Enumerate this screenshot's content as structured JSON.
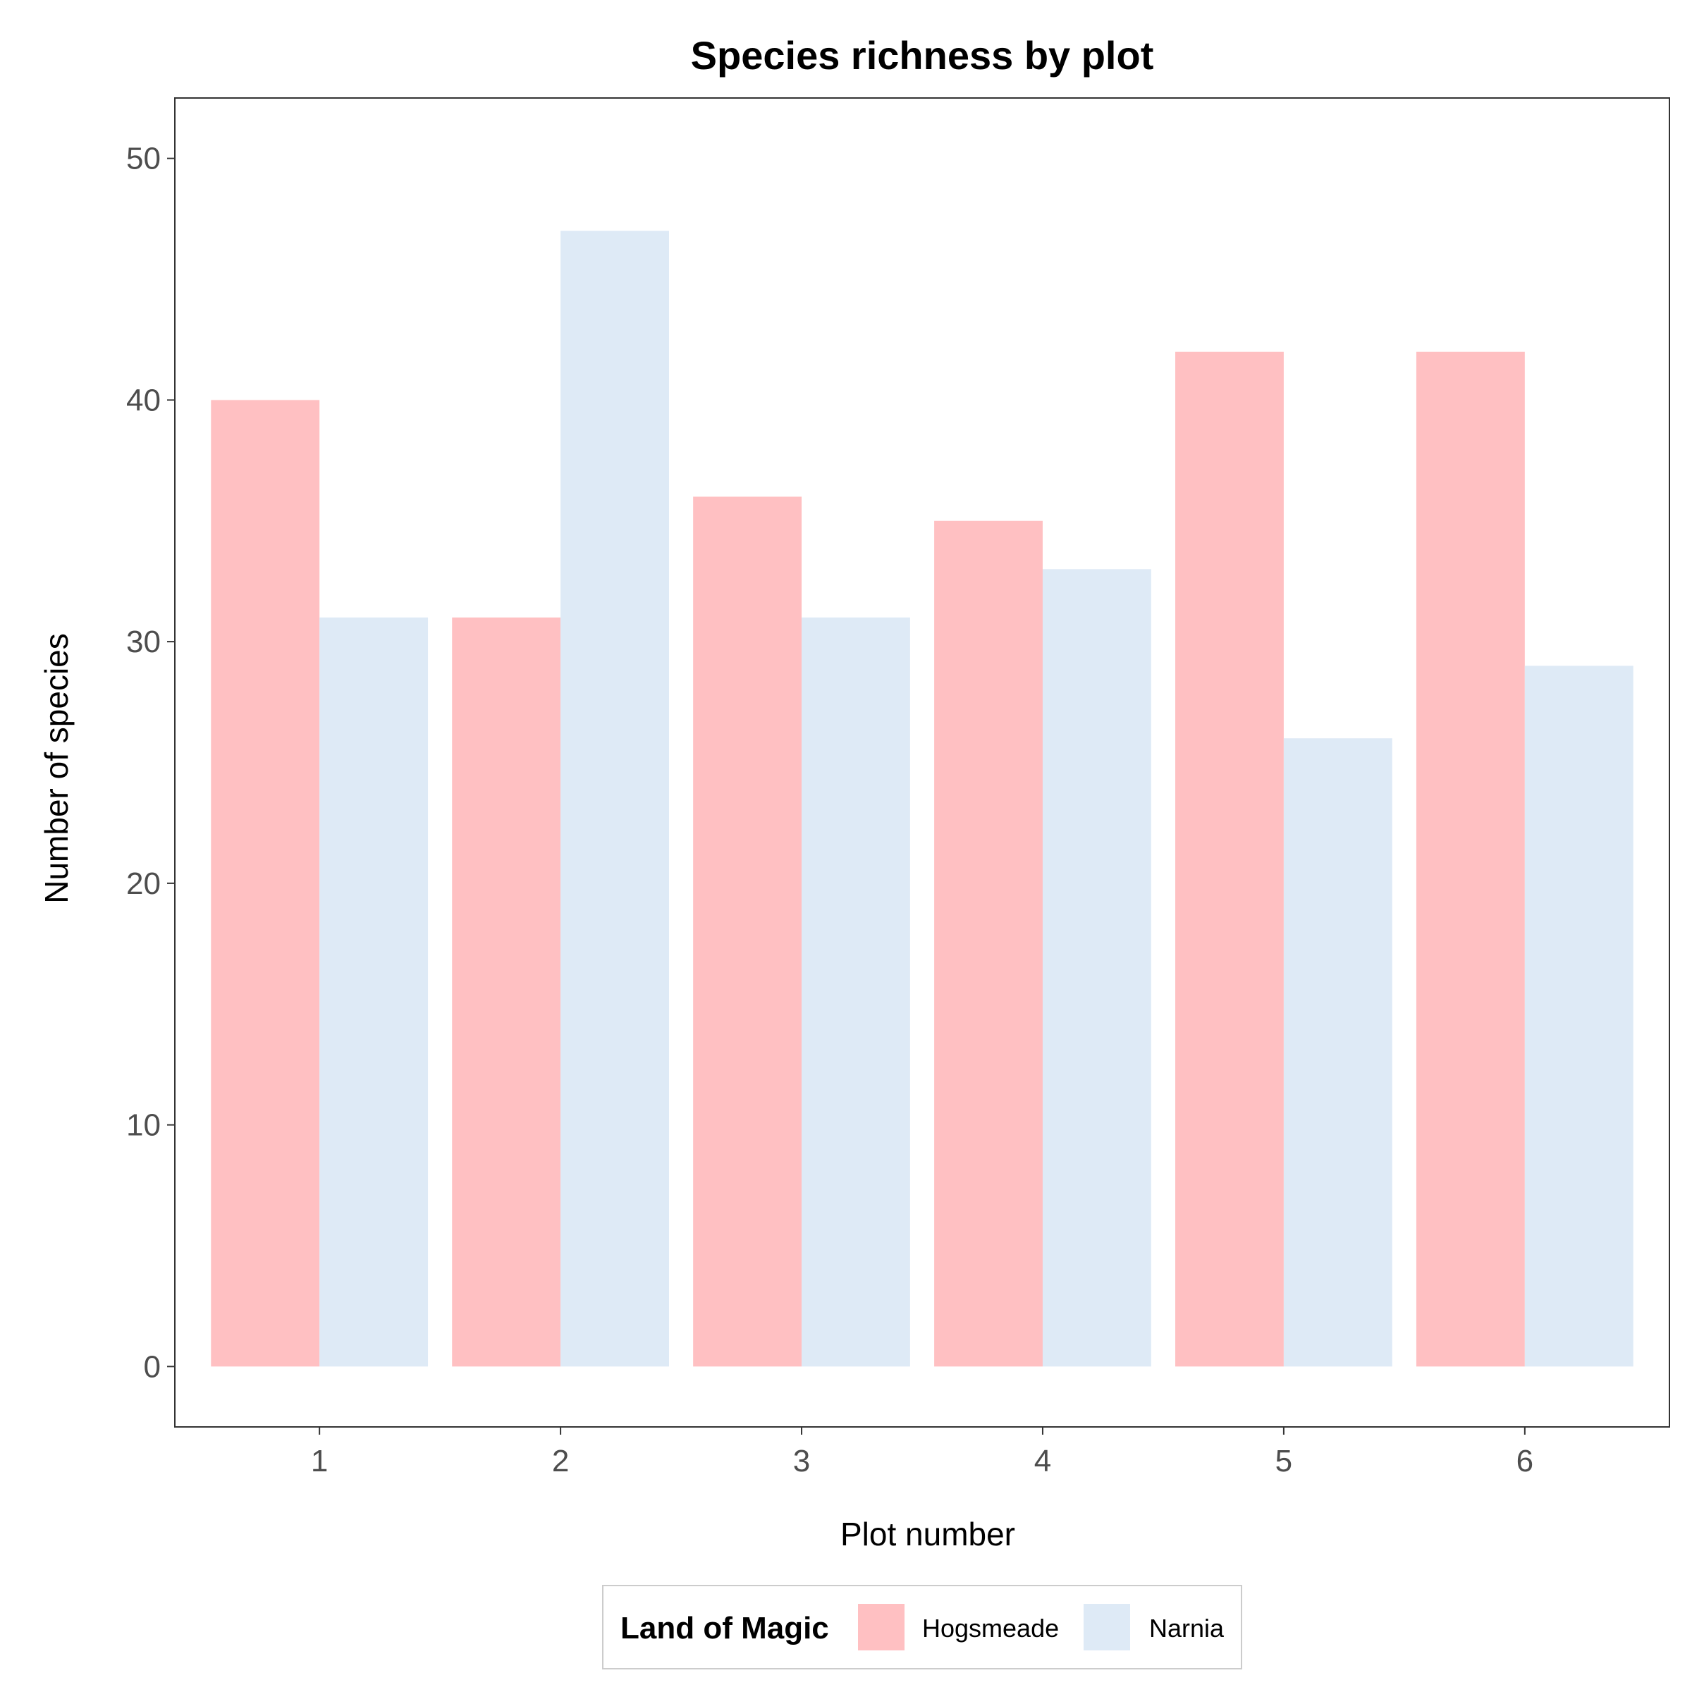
{
  "chart_data": {
    "type": "bar",
    "title": "Species richness by plot",
    "xlabel": "Plot number",
    "ylabel": "Number of species",
    "categories": [
      "1",
      "2",
      "3",
      "4",
      "5",
      "6"
    ],
    "series": [
      {
        "name": "Hogsmeade",
        "color": "#ffc0c2",
        "values": [
          40,
          31,
          36,
          35,
          42,
          42
        ]
      },
      {
        "name": "Narnia",
        "color": "#deeaf6",
        "values": [
          31,
          47,
          31,
          33,
          26,
          29
        ]
      }
    ],
    "ylim": [
      -2.5,
      52.5
    ],
    "yticks": [
      0,
      10,
      20,
      30,
      40,
      50
    ],
    "grid": false,
    "legend": {
      "title": "Land of Magic",
      "position": "bottom"
    }
  }
}
